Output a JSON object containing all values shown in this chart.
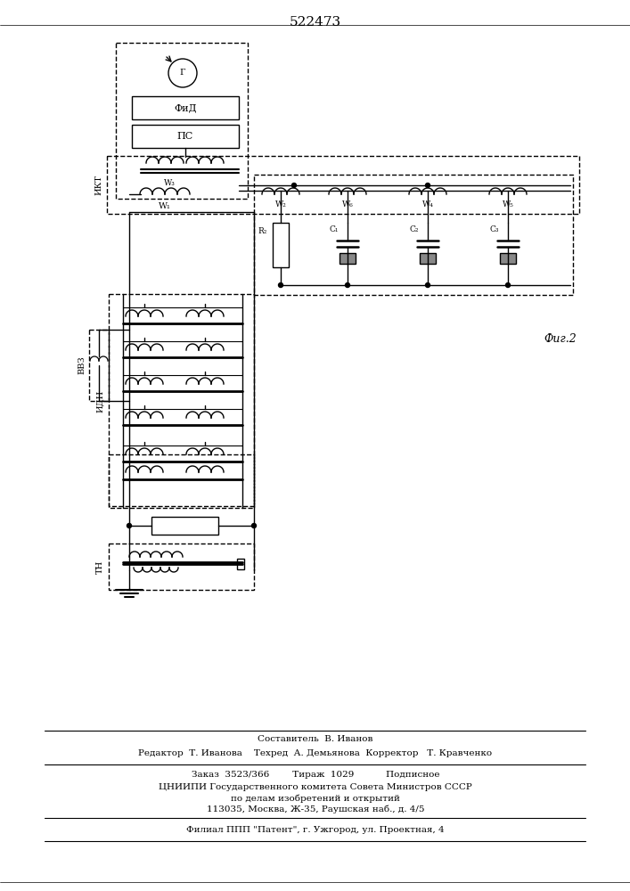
{
  "title": "522473",
  "fig2_label": "Фиг.2",
  "label_ikt": "ИКТ",
  "label_vvz": "ВВЗ",
  "label_idn": "ИДН",
  "label_tn": "ТН",
  "label_fid": "ФиД",
  "label_ps": "ПС",
  "label_g": "Г",
  "label_w1": "W₁",
  "label_w2": "W₂",
  "label_w3": "W₃",
  "label_w4": "W₄",
  "label_w5": "W₅",
  "label_w6": "W₆",
  "label_r2": "R₂",
  "label_c1": "C₁",
  "label_c2": "C₂",
  "label_c3": "C₃",
  "footer_line1": "Составитель  В. Иванов",
  "footer_line2": "Редактор  Т. Иванова    Техред  А. Демьянова  Корректор   Т. Кравченко",
  "footer_line3": "Заказ  3523/366        Тираж  1029           Подписное",
  "footer_line4": "ЦНИИПИ Государственного комитета Совета Министров СССР",
  "footer_line5": "по делам изобретений и открытий",
  "footer_line6": "113035, Москва, Ж-35, Раушская наб., д. 4/5",
  "footer_line7": "Филиал ППП \"Патент\", г. Ужгород, ул. Проектная, 4",
  "bg_color": "#ffffff",
  "line_color": "#000000"
}
